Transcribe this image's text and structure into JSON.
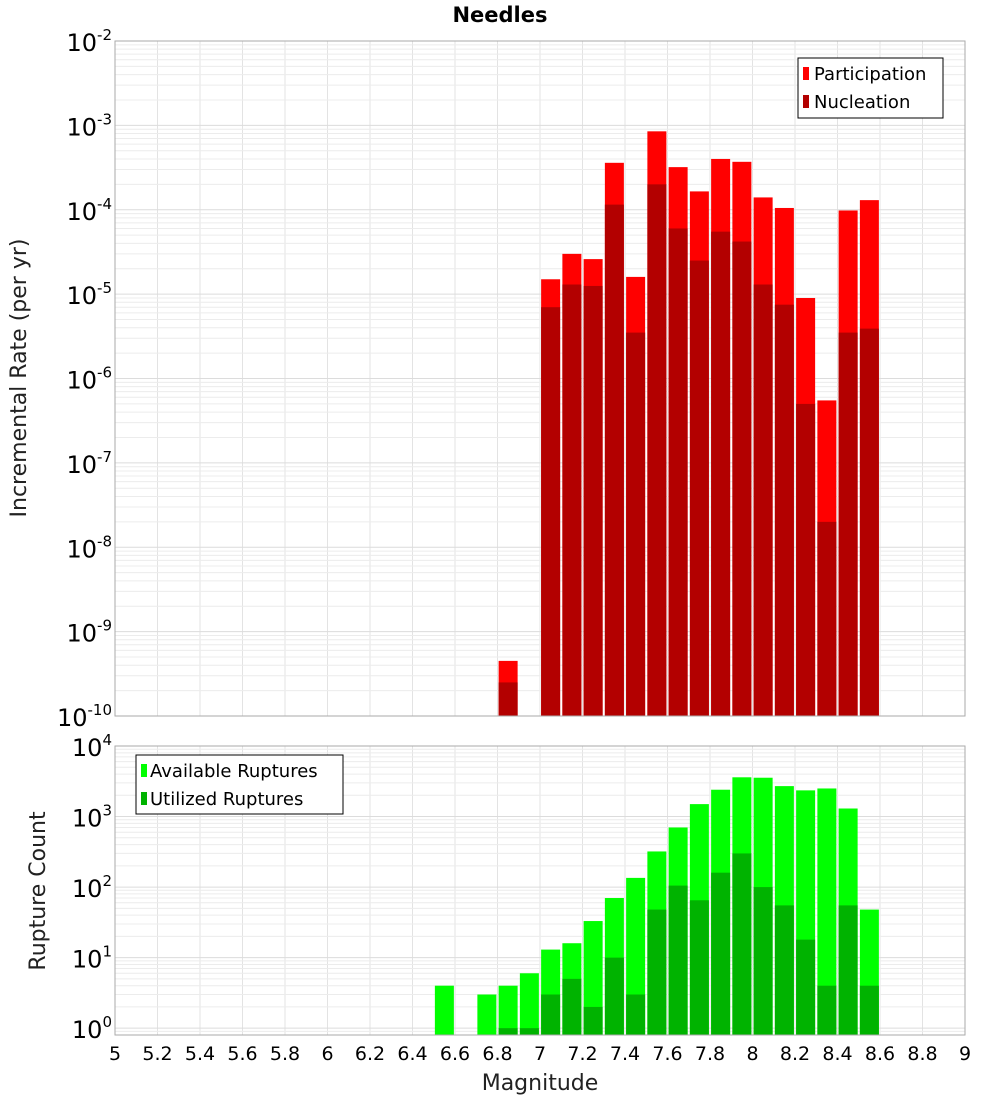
{
  "chart_data": [
    {
      "type": "bar",
      "title": "Needles",
      "xlabel": "",
      "ylabel": "Incremental Rate (per yr)",
      "xlim": [
        5,
        9
      ],
      "ylim": [
        1e-10,
        0.01
      ],
      "yscale": "log",
      "ytick_exponents": [
        "-10",
        "-9",
        "-8",
        "-7",
        "-6",
        "-5",
        "-4",
        "-3",
        "-2"
      ],
      "grid": true,
      "legend_position": "top-right",
      "legend": [
        "Participation",
        "Nucleation"
      ],
      "colors": {
        "Participation": "#ff0000",
        "Nucleation": "#b30000"
      },
      "x": [
        6.85,
        7.05,
        7.15,
        7.25,
        7.35,
        7.45,
        7.55,
        7.65,
        7.75,
        7.85,
        7.95,
        8.05,
        8.15,
        8.25,
        8.35,
        8.45,
        8.55
      ],
      "series": [
        {
          "name": "Participation",
          "values": [
            4.5e-10,
            1.5e-05,
            3e-05,
            2.6e-05,
            0.00036,
            1.6e-05,
            0.00085,
            0.00032,
            0.000165,
            0.0004,
            0.00037,
            0.00014,
            0.000105,
            9e-06,
            5.5e-07,
            9.8e-05,
            0.00013
          ]
        },
        {
          "name": "Nucleation",
          "values": [
            2.5e-10,
            7e-06,
            1.3e-05,
            1.25e-05,
            0.000115,
            3.5e-06,
            0.0002,
            6e-05,
            2.5e-05,
            5.5e-05,
            4.2e-05,
            1.3e-05,
            7.5e-06,
            5e-07,
            2e-08,
            3.5e-06,
            3.9e-06
          ]
        }
      ]
    },
    {
      "type": "bar",
      "title": "",
      "xlabel": "Magnitude",
      "ylabel": "Rupture Count",
      "xlim": [
        5,
        9
      ],
      "ylim": [
        0.8,
        10000
      ],
      "yscale": "log",
      "ytick_exponents": [
        "0",
        "1",
        "2",
        "3",
        "4"
      ],
      "grid": true,
      "legend_position": "top-left",
      "legend": [
        "Available Ruptures",
        "Utilized Ruptures"
      ],
      "colors": {
        "Available Ruptures": "#00ff00",
        "Utilized Ruptures": "#00b300"
      },
      "xticks": [
        "5",
        "5.2",
        "5.4",
        "5.6",
        "5.8",
        "6",
        "6.2",
        "6.4",
        "6.6",
        "6.8",
        "7",
        "7.2",
        "7.4",
        "7.6",
        "7.8",
        "8",
        "8.2",
        "8.4",
        "8.6",
        "8.8",
        "9"
      ],
      "x": [
        6.55,
        6.75,
        6.85,
        6.95,
        7.05,
        7.15,
        7.25,
        7.35,
        7.45,
        7.55,
        7.65,
        7.75,
        7.85,
        7.95,
        8.05,
        8.15,
        8.25,
        8.35,
        8.45,
        8.55
      ],
      "series": [
        {
          "name": "Available Ruptures",
          "values": [
            4,
            3,
            4,
            6,
            13,
            16,
            33,
            70,
            135,
            320,
            700,
            1500,
            2400,
            3600,
            3550,
            2700,
            2350,
            2500,
            1300,
            48
          ]
        },
        {
          "name": "Utilized Ruptures",
          "values": [
            0,
            0,
            1,
            1,
            3,
            5,
            2,
            10,
            3,
            48,
            105,
            65,
            160,
            300,
            100,
            55,
            18,
            4,
            55,
            4
          ]
        }
      ]
    }
  ]
}
